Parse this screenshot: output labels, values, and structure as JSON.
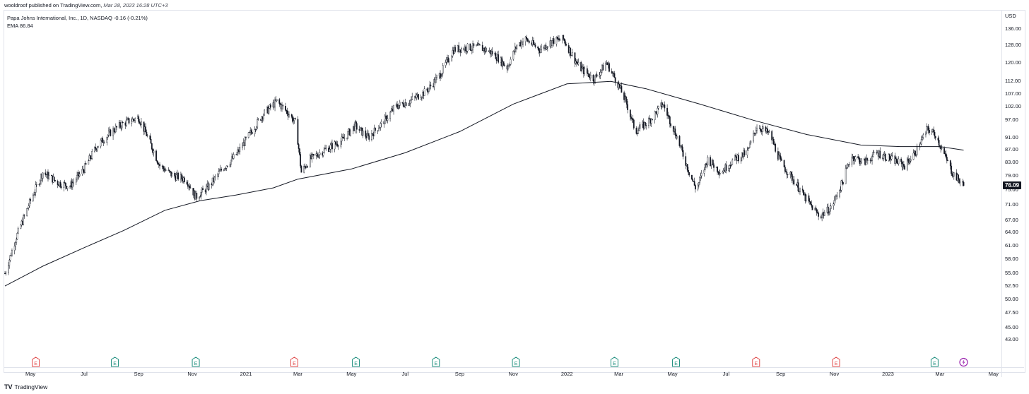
{
  "publication": {
    "author": "wooldroof",
    "text": "published on TradingView.com,",
    "date": "Mar 28, 2023 16:28 UTC+3"
  },
  "legend": {
    "symbol_line": "Papa Johns International, Inc., 1D, NASDAQ",
    "change": "-0.16 (-0.21%)",
    "ema_label": "EMA",
    "ema_value": "86.84"
  },
  "brand": {
    "logo": "TV",
    "name": "TradingView"
  },
  "colors": {
    "candle": "#131722",
    "ema": "#131722",
    "grid": "#e0e3eb",
    "earnings_red": "#e04a4a",
    "earnings_green": "#1e8e7e",
    "flash_purple": "#9c27b0"
  },
  "chart_data": {
    "type": "candlestick",
    "title": "Papa Johns International, Inc., 1D, NASDAQ",
    "currency": "USD",
    "last_price": "76.09",
    "y_scale": "log",
    "ylim": [
      41.5,
      140
    ],
    "y_ticks": [
      "136.00",
      "128.00",
      "120.00",
      "112.00",
      "107.00",
      "102.00",
      "97.00",
      "91.00",
      "87.00",
      "83.00",
      "79.00",
      "75.00",
      "71.00",
      "67.00",
      "64.00",
      "61.00",
      "58.00",
      "55.00",
      "52.50",
      "50.00",
      "47.50",
      "45.00",
      "43.00"
    ],
    "x_ticks": [
      "May",
      "Jul",
      "Sep",
      "Nov",
      "2021",
      "Mar",
      "May",
      "Jul",
      "Sep",
      "Nov",
      "2022",
      "Mar",
      "May",
      "Jul",
      "Sep",
      "Nov",
      "2023",
      "Mar",
      "May"
    ],
    "x_tick_dates": [
      "2020-05-01",
      "2020-07-01",
      "2020-09-01",
      "2020-11-01",
      "2021-01-01",
      "2021-03-01",
      "2021-05-01",
      "2021-07-01",
      "2021-09-01",
      "2021-11-01",
      "2022-01-01",
      "2022-03-01",
      "2022-05-01",
      "2022-07-01",
      "2022-09-01",
      "2022-11-01",
      "2023-01-01",
      "2023-03-01",
      "2023-05-01"
    ],
    "x_range": [
      "2020-04-02",
      "2023-05-10"
    ],
    "price_series": [
      {
        "date": "2020-04-02",
        "close": 55
      },
      {
        "date": "2020-04-15",
        "close": 63
      },
      {
        "date": "2020-05-01",
        "close": 72
      },
      {
        "date": "2020-05-15",
        "close": 80
      },
      {
        "date": "2020-06-01",
        "close": 77
      },
      {
        "date": "2020-06-15",
        "close": 76
      },
      {
        "date": "2020-07-01",
        "close": 81
      },
      {
        "date": "2020-07-15",
        "close": 88
      },
      {
        "date": "2020-08-01",
        "close": 93
      },
      {
        "date": "2020-08-15",
        "close": 96
      },
      {
        "date": "2020-09-01",
        "close": 98
      },
      {
        "date": "2020-09-10",
        "close": 92
      },
      {
        "date": "2020-09-25",
        "close": 82
      },
      {
        "date": "2020-10-10",
        "close": 79
      },
      {
        "date": "2020-10-25",
        "close": 78
      },
      {
        "date": "2020-11-05",
        "close": 73
      },
      {
        "date": "2020-11-20",
        "close": 76
      },
      {
        "date": "2020-12-05",
        "close": 81
      },
      {
        "date": "2020-12-20",
        "close": 85
      },
      {
        "date": "2021-01-05",
        "close": 92
      },
      {
        "date": "2021-01-20",
        "close": 99
      },
      {
        "date": "2021-02-05",
        "close": 104
      },
      {
        "date": "2021-02-20",
        "close": 99
      },
      {
        "date": "2021-02-26",
        "close": 96
      },
      {
        "date": "2021-03-01",
        "close": 90
      },
      {
        "date": "2021-03-05",
        "close": 80
      },
      {
        "date": "2021-03-15",
        "close": 84
      },
      {
        "date": "2021-04-01",
        "close": 87
      },
      {
        "date": "2021-04-20",
        "close": 90
      },
      {
        "date": "2021-05-05",
        "close": 95
      },
      {
        "date": "2021-05-20",
        "close": 91
      },
      {
        "date": "2021-06-05",
        "close": 96
      },
      {
        "date": "2021-06-20",
        "close": 102
      },
      {
        "date": "2021-07-05",
        "close": 104
      },
      {
        "date": "2021-07-25",
        "close": 108
      },
      {
        "date": "2021-08-10",
        "close": 115
      },
      {
        "date": "2021-08-25",
        "close": 126
      },
      {
        "date": "2021-09-10",
        "close": 127
      },
      {
        "date": "2021-09-25",
        "close": 127
      },
      {
        "date": "2021-10-10",
        "close": 124
      },
      {
        "date": "2021-10-25",
        "close": 118
      },
      {
        "date": "2021-11-05",
        "close": 128
      },
      {
        "date": "2021-11-15",
        "close": 131
      },
      {
        "date": "2021-12-01",
        "close": 126
      },
      {
        "date": "2021-12-15",
        "close": 130
      },
      {
        "date": "2021-12-28",
        "close": 131
      },
      {
        "date": "2022-01-05",
        "close": 125
      },
      {
        "date": "2022-01-15",
        "close": 118
      },
      {
        "date": "2022-02-01",
        "close": 113
      },
      {
        "date": "2022-02-15",
        "close": 120
      },
      {
        "date": "2022-02-28",
        "close": 111
      },
      {
        "date": "2022-03-10",
        "close": 103
      },
      {
        "date": "2022-03-20",
        "close": 93
      },
      {
        "date": "2022-04-05",
        "close": 97
      },
      {
        "date": "2022-04-20",
        "close": 103
      },
      {
        "date": "2022-05-05",
        "close": 92
      },
      {
        "date": "2022-05-20",
        "close": 80
      },
      {
        "date": "2022-05-28",
        "close": 75
      },
      {
        "date": "2022-06-10",
        "close": 84
      },
      {
        "date": "2022-06-25",
        "close": 80
      },
      {
        "date": "2022-07-10",
        "close": 84
      },
      {
        "date": "2022-07-25",
        "close": 86
      },
      {
        "date": "2022-08-05",
        "close": 95
      },
      {
        "date": "2022-08-20",
        "close": 92
      },
      {
        "date": "2022-09-01",
        "close": 83
      },
      {
        "date": "2022-09-15",
        "close": 78
      },
      {
        "date": "2022-10-01",
        "close": 72
      },
      {
        "date": "2022-10-15",
        "close": 68
      },
      {
        "date": "2022-10-28",
        "close": 70
      },
      {
        "date": "2022-11-10",
        "close": 77
      },
      {
        "date": "2022-11-20",
        "close": 85
      },
      {
        "date": "2022-12-05",
        "close": 83
      },
      {
        "date": "2022-12-20",
        "close": 86
      },
      {
        "date": "2023-01-05",
        "close": 84
      },
      {
        "date": "2023-01-20",
        "close": 82
      },
      {
        "date": "2023-02-01",
        "close": 86
      },
      {
        "date": "2023-02-15",
        "close": 94
      },
      {
        "date": "2023-02-24",
        "close": 92
      },
      {
        "date": "2023-03-05",
        "close": 86
      },
      {
        "date": "2023-03-15",
        "close": 80
      },
      {
        "date": "2023-03-28",
        "close": 76.09
      }
    ],
    "ema_series": [
      {
        "date": "2020-04-02",
        "value": 52.5
      },
      {
        "date": "2020-05-15",
        "value": 56.5
      },
      {
        "date": "2020-07-01",
        "value": 60.5
      },
      {
        "date": "2020-08-15",
        "value": 64.5
      },
      {
        "date": "2020-10-01",
        "value": 69.5
      },
      {
        "date": "2020-11-10",
        "value": 72
      },
      {
        "date": "2020-12-20",
        "value": 73.5
      },
      {
        "date": "2021-02-01",
        "value": 75.5
      },
      {
        "date": "2021-03-01",
        "value": 78
      },
      {
        "date": "2021-05-01",
        "value": 81
      },
      {
        "date": "2021-07-01",
        "value": 86
      },
      {
        "date": "2021-09-01",
        "value": 93
      },
      {
        "date": "2021-11-01",
        "value": 103
      },
      {
        "date": "2022-01-01",
        "value": 111
      },
      {
        "date": "2022-02-20",
        "value": 112
      },
      {
        "date": "2022-04-01",
        "value": 109
      },
      {
        "date": "2022-06-01",
        "value": 103
      },
      {
        "date": "2022-08-01",
        "value": 97
      },
      {
        "date": "2022-10-01",
        "value": 92
      },
      {
        "date": "2022-12-01",
        "value": 88.5
      },
      {
        "date": "2023-01-15",
        "value": 88
      },
      {
        "date": "2023-03-01",
        "value": 88
      },
      {
        "date": "2023-03-28",
        "value": 86.84
      }
    ],
    "events": [
      {
        "date": "2020-05-07",
        "type": "E",
        "color": "red"
      },
      {
        "date": "2020-08-05",
        "type": "E",
        "color": "green"
      },
      {
        "date": "2020-11-05",
        "type": "E",
        "color": "green"
      },
      {
        "date": "2021-02-25",
        "type": "E",
        "color": "red"
      },
      {
        "date": "2021-05-06",
        "type": "E",
        "color": "green"
      },
      {
        "date": "2021-08-05",
        "type": "E",
        "color": "green"
      },
      {
        "date": "2021-11-04",
        "type": "E",
        "color": "green"
      },
      {
        "date": "2022-02-24",
        "type": "E",
        "color": "green"
      },
      {
        "date": "2022-05-05",
        "type": "E",
        "color": "green"
      },
      {
        "date": "2022-08-04",
        "type": "E",
        "color": "red"
      },
      {
        "date": "2022-11-03",
        "type": "E",
        "color": "red"
      },
      {
        "date": "2023-02-23",
        "type": "E",
        "color": "green"
      },
      {
        "date": "2023-03-28",
        "type": "flash",
        "color": "purple"
      }
    ],
    "grid": false,
    "legend_position": "top-left"
  }
}
